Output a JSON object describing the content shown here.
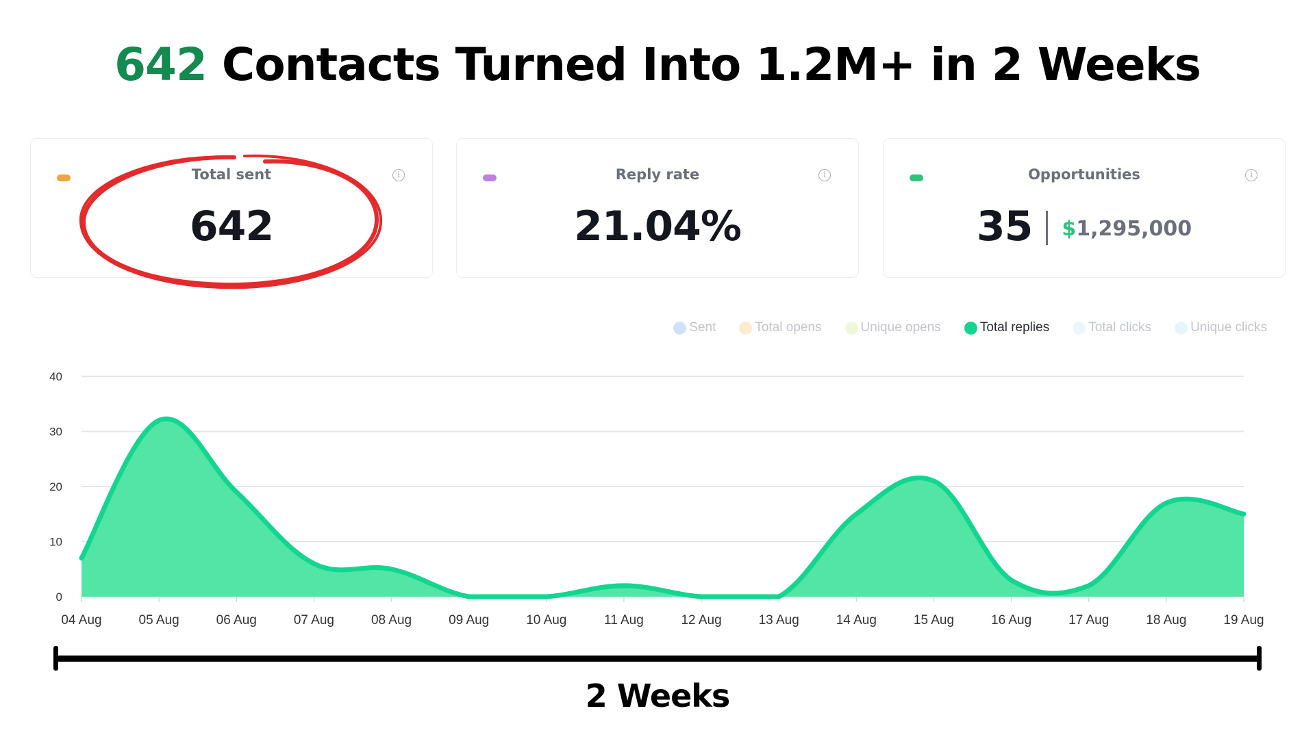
{
  "headline": {
    "accent_text": "642",
    "rest_text": " Contacts Turned Into 1.2M+ in 2 Weeks",
    "accent_color": "#138a4f"
  },
  "cards": [
    {
      "label": "Total sent",
      "value": "642",
      "dot_color": "#f0a63d",
      "info_icon": "info-icon",
      "highlighted": true,
      "highlight_color": "#e32b2b"
    },
    {
      "label": "Reply rate",
      "value": "21.04%",
      "dot_color": "#bf7fe3",
      "info_icon": "info-icon"
    },
    {
      "label": "Opportunities",
      "value": "35",
      "currency_symbol": "$",
      "amount": "1,295,000",
      "dot_color": "#2ec27e",
      "info_icon": "info-icon"
    }
  ],
  "legend": [
    {
      "label": "Sent",
      "color": "#cfe2fb",
      "active": false
    },
    {
      "label": "Total opens",
      "color": "#fdebcf",
      "active": false
    },
    {
      "label": "Unique opens",
      "color": "#eef8d8",
      "active": false
    },
    {
      "label": "Total replies",
      "color": "#12d68f",
      "active": true
    },
    {
      "label": "Total clicks",
      "color": "#eef6fd",
      "active": false
    },
    {
      "label": "Unique clicks",
      "color": "#e6f5fb",
      "active": false
    }
  ],
  "chart_data": {
    "type": "area",
    "title": "",
    "xlabel": "",
    "ylabel": "",
    "categories": [
      "04 Aug",
      "05 Aug",
      "06 Aug",
      "07 Aug",
      "08 Aug",
      "09 Aug",
      "10 Aug",
      "11 Aug",
      "12 Aug",
      "13 Aug",
      "14 Aug",
      "15 Aug",
      "16 Aug",
      "17 Aug",
      "18 Aug",
      "19 Aug"
    ],
    "series": [
      {
        "name": "Total replies",
        "color": "#12d68f",
        "fill": "#52e5a6",
        "values": [
          7,
          32,
          19,
          6,
          5,
          0,
          0,
          2,
          0,
          0,
          15,
          21,
          3,
          2,
          17,
          15
        ]
      }
    ],
    "ylim": [
      0,
      40
    ],
    "yticks": [
      0,
      10,
      20,
      30,
      40
    ],
    "grid": true,
    "legend_position": "top-right"
  },
  "span": {
    "label": "2 Weeks"
  }
}
